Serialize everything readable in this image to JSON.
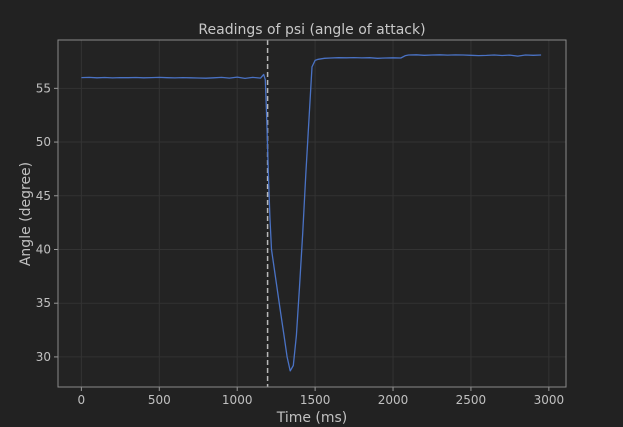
{
  "chart_data": {
    "type": "line",
    "title": "Readings of psi (angle of attack)",
    "xlabel": "Time (ms)",
    "ylabel": "Angle (degree)",
    "xlim": [
      -150,
      3110
    ],
    "ylim": [
      27.2,
      59.5
    ],
    "xticks": [
      0,
      500,
      1000,
      1500,
      2000,
      2500,
      3000
    ],
    "yticks": [
      30,
      35,
      40,
      45,
      50,
      55
    ],
    "grid": true,
    "colors": {
      "background": "#222222",
      "line": "#4a72c4",
      "marker": "#b8b8b8"
    },
    "vertical_marker_x": 1195,
    "series": [
      {
        "x": [
          0,
          50,
          100,
          150,
          200,
          250,
          300,
          350,
          400,
          450,
          500,
          550,
          600,
          650,
          700,
          750,
          800,
          850,
          900,
          950,
          1000,
          1050,
          1100,
          1150,
          1170,
          1180,
          1190,
          1200,
          1210,
          1220,
          1240,
          1260,
          1280,
          1300,
          1320,
          1340,
          1360,
          1380,
          1400,
          1420,
          1440,
          1460,
          1480,
          1500,
          1520,
          1540,
          1560,
          1600,
          1650,
          1700,
          1750,
          1800,
          1850,
          1900,
          1950,
          2000,
          2050,
          2080,
          2100,
          2150,
          2200,
          2250,
          2300,
          2350,
          2400,
          2450,
          2500,
          2550,
          2600,
          2650,
          2700,
          2750,
          2800,
          2850,
          2900,
          2950
        ],
        "values": [
          56.0,
          56.02,
          55.98,
          56.01,
          55.97,
          56.0,
          55.99,
          56.01,
          55.98,
          56.0,
          56.02,
          55.99,
          55.97,
          56.0,
          55.98,
          55.96,
          55.94,
          55.98,
          56.02,
          55.95,
          56.05,
          55.93,
          56.02,
          55.95,
          56.3,
          55.8,
          52.0,
          47.0,
          43.0,
          40.0,
          38.0,
          36.0,
          34.0,
          32.0,
          30.0,
          28.7,
          29.2,
          32.0,
          36.5,
          41.5,
          47.0,
          52.0,
          57.0,
          57.6,
          57.7,
          57.75,
          57.8,
          57.82,
          57.85,
          57.84,
          57.86,
          57.83,
          57.85,
          57.8,
          57.82,
          57.84,
          57.82,
          58.05,
          58.1,
          58.12,
          58.08,
          58.1,
          58.12,
          58.09,
          58.11,
          58.1,
          58.08,
          58.05,
          58.07,
          58.1,
          58.06,
          58.09,
          58.0,
          58.1,
          58.08,
          58.1
        ]
      }
    ]
  }
}
